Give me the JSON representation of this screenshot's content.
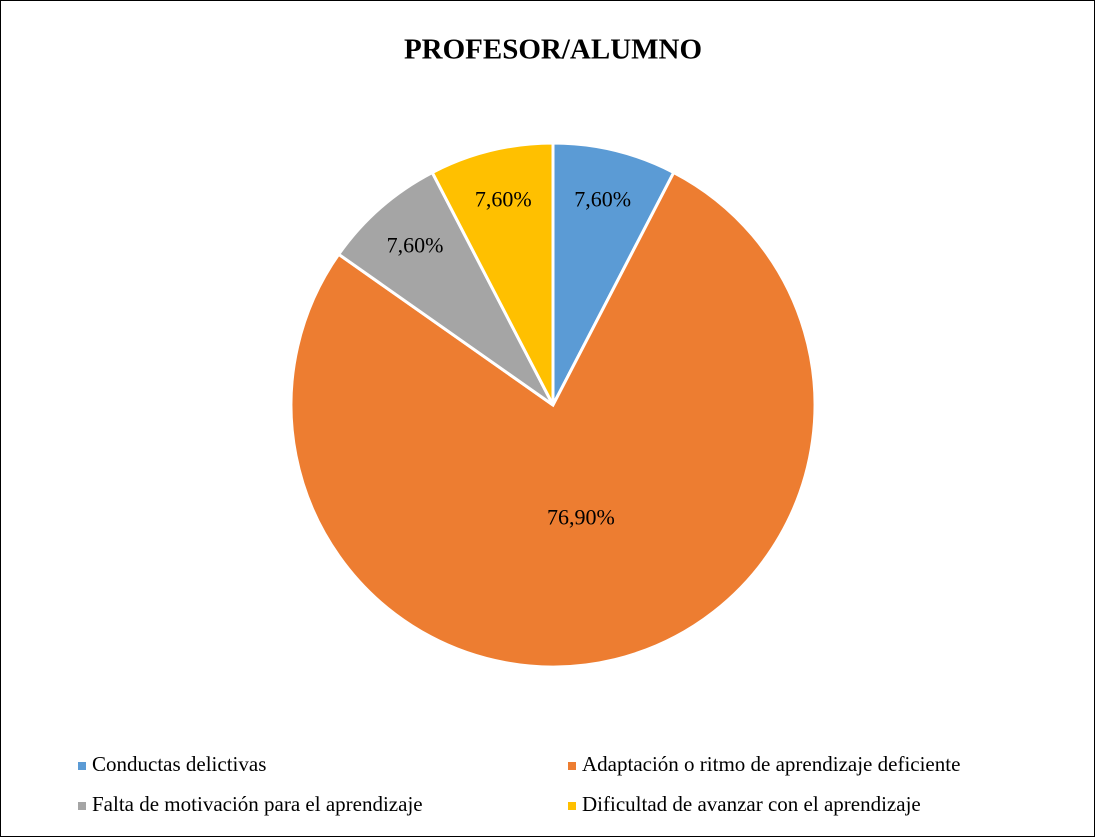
{
  "chart_data": {
    "type": "pie",
    "title": "PROFESOR/ALUMNO",
    "categories": [
      "Conductas delictivas",
      "Adaptación o ritmo de aprendizaje deficiente",
      "Falta de motivación para el aprendizaje",
      "Dificultad de avanzar con el aprendizaje"
    ],
    "values": [
      7.6,
      76.9,
      7.6,
      7.6
    ],
    "value_labels": [
      "7,60%",
      "76,90%",
      "7,60%",
      "7,60%"
    ],
    "colors": [
      "#5b9bd5",
      "#ed7d31",
      "#a5a5a5",
      "#ffc000"
    ],
    "legend": "bottom"
  }
}
